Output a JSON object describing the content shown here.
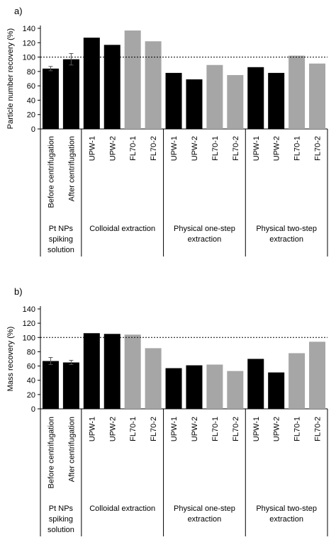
{
  "chart_data": [
    {
      "type": "bar",
      "panel_label": "a)",
      "ylabel": "Particle number recovery (%)",
      "ylim": [
        0,
        140
      ],
      "yticks": [
        0,
        20,
        40,
        60,
        80,
        100,
        120,
        140
      ],
      "reference_line": 100,
      "categories": [
        "Before centrifugation",
        "After centrifugation",
        "UPW-1",
        "UPW-2",
        "FL70-1",
        "FL70-2",
        "UPW-1",
        "UPW-2",
        "FL70-1",
        "FL70-2",
        "UPW-1",
        "UPW-2",
        "FL70-1",
        "FL70-2"
      ],
      "values": [
        84,
        97,
        127,
        117,
        137,
        122,
        78,
        69,
        89,
        75,
        86,
        78,
        102,
        91
      ],
      "errors": [
        3,
        8,
        null,
        null,
        null,
        null,
        null,
        null,
        null,
        null,
        null,
        null,
        null,
        null
      ],
      "bar_colors": [
        "#000000",
        "#000000",
        "#000000",
        "#000000",
        "#a6a6a6",
        "#a6a6a6",
        "#000000",
        "#000000",
        "#a6a6a6",
        "#a6a6a6",
        "#000000",
        "#000000",
        "#a6a6a6",
        "#a6a6a6"
      ],
      "groups": [
        {
          "label": "Pt NPs spiking solution",
          "lines": [
            "Pt NPs",
            "spiking",
            "solution"
          ],
          "start": 0,
          "end": 1
        },
        {
          "label": "Colloidal extraction",
          "lines": [
            "Colloidal extraction"
          ],
          "start": 2,
          "end": 5
        },
        {
          "label": "Physical one-step extraction",
          "lines": [
            "Physical one-step",
            "extraction"
          ],
          "start": 6,
          "end": 9
        },
        {
          "label": "Physical two-step extraction",
          "lines": [
            "Physical two-step",
            "extraction"
          ],
          "start": 10,
          "end": 13
        }
      ]
    },
    {
      "type": "bar",
      "panel_label": "b)",
      "ylabel": "Mass recovery (%)",
      "ylim": [
        0,
        140
      ],
      "yticks": [
        0,
        20,
        40,
        60,
        80,
        100,
        120,
        140
      ],
      "reference_line": 100,
      "categories": [
        "Before centrifugation",
        "After centrifugation",
        "UPW-1",
        "UPW-2",
        "FL70-1",
        "FL70-2",
        "UPW-1",
        "UPW-2",
        "FL70-1",
        "FL70-2",
        "UPW-1",
        "UPW-2",
        "FL70-1",
        "FL70-2"
      ],
      "values": [
        67,
        65,
        106,
        105,
        104,
        85,
        57,
        61,
        62,
        53,
        70,
        51,
        78,
        94
      ],
      "errors": [
        5,
        3,
        null,
        null,
        null,
        null,
        null,
        null,
        null,
        null,
        null,
        null,
        null,
        null
      ],
      "bar_colors": [
        "#000000",
        "#000000",
        "#000000",
        "#000000",
        "#a6a6a6",
        "#a6a6a6",
        "#000000",
        "#000000",
        "#a6a6a6",
        "#a6a6a6",
        "#000000",
        "#000000",
        "#a6a6a6",
        "#a6a6a6"
      ],
      "groups": [
        {
          "label": "Pt NPs spiking solution",
          "lines": [
            "Pt NPs",
            "spiking",
            "solution"
          ],
          "start": 0,
          "end": 1
        },
        {
          "label": "Colloidal extraction",
          "lines": [
            "Colloidal extraction"
          ],
          "start": 2,
          "end": 5
        },
        {
          "label": "Physical one-step extraction",
          "lines": [
            "Physical one-step",
            "extraction"
          ],
          "start": 6,
          "end": 9
        },
        {
          "label": "Physical two-step extraction",
          "lines": [
            "Physical two-step",
            "extraction"
          ],
          "start": 10,
          "end": 13
        }
      ]
    }
  ]
}
